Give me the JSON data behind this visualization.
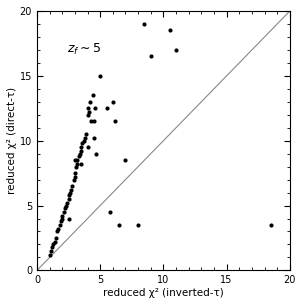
{
  "scatter_x": [
    1.0,
    1.1,
    1.2,
    1.3,
    1.4,
    1.5,
    1.6,
    1.7,
    1.8,
    1.9,
    2.0,
    2.0,
    2.1,
    2.2,
    2.3,
    2.4,
    2.5,
    2.5,
    2.6,
    2.7,
    2.8,
    2.9,
    3.0,
    3.0,
    3.1,
    3.2,
    3.2,
    3.3,
    3.4,
    3.5,
    3.5,
    3.6,
    3.7,
    3.8,
    3.9,
    4.0,
    4.0,
    4.1,
    4.2,
    4.3,
    4.4,
    4.5,
    4.6,
    4.7,
    2.5,
    3.0,
    3.5,
    4.0,
    4.5,
    5.0,
    5.5,
    5.8,
    6.0,
    6.2,
    6.5,
    7.0,
    8.0,
    8.5,
    9.0,
    10.5,
    11.0,
    18.5
  ],
  "scatter_y": [
    1.2,
    1.5,
    1.8,
    2.0,
    2.2,
    2.5,
    3.0,
    3.2,
    3.5,
    3.8,
    4.0,
    4.2,
    4.5,
    4.8,
    5.0,
    5.2,
    5.5,
    5.8,
    6.0,
    6.2,
    6.5,
    7.0,
    7.2,
    7.5,
    8.0,
    8.2,
    8.5,
    8.8,
    9.0,
    9.2,
    9.5,
    9.8,
    10.0,
    10.2,
    10.5,
    12.0,
    12.5,
    12.2,
    13.0,
    11.5,
    13.5,
    11.5,
    12.5,
    9.0,
    4.0,
    8.5,
    8.2,
    9.5,
    10.2,
    15.0,
    12.5,
    4.5,
    13.0,
    11.5,
    3.5,
    8.5,
    3.5,
    19.0,
    16.5,
    18.5,
    17.0,
    3.5
  ],
  "xlabel": "reduced χ² (inverted-τ)",
  "ylabel": "reduced χ² (direct-τ)",
  "annotation": "$z_f \\sim 5$",
  "xlim": [
    0,
    20
  ],
  "ylim": [
    0,
    20
  ],
  "xticks": [
    0,
    5,
    10,
    15,
    20
  ],
  "yticks": [
    0,
    5,
    10,
    15,
    20
  ],
  "marker_color": "black",
  "marker_size": 9,
  "line_color": "#888888",
  "bg_color": "white",
  "figsize": [
    3.03,
    3.05
  ],
  "dpi": 100
}
